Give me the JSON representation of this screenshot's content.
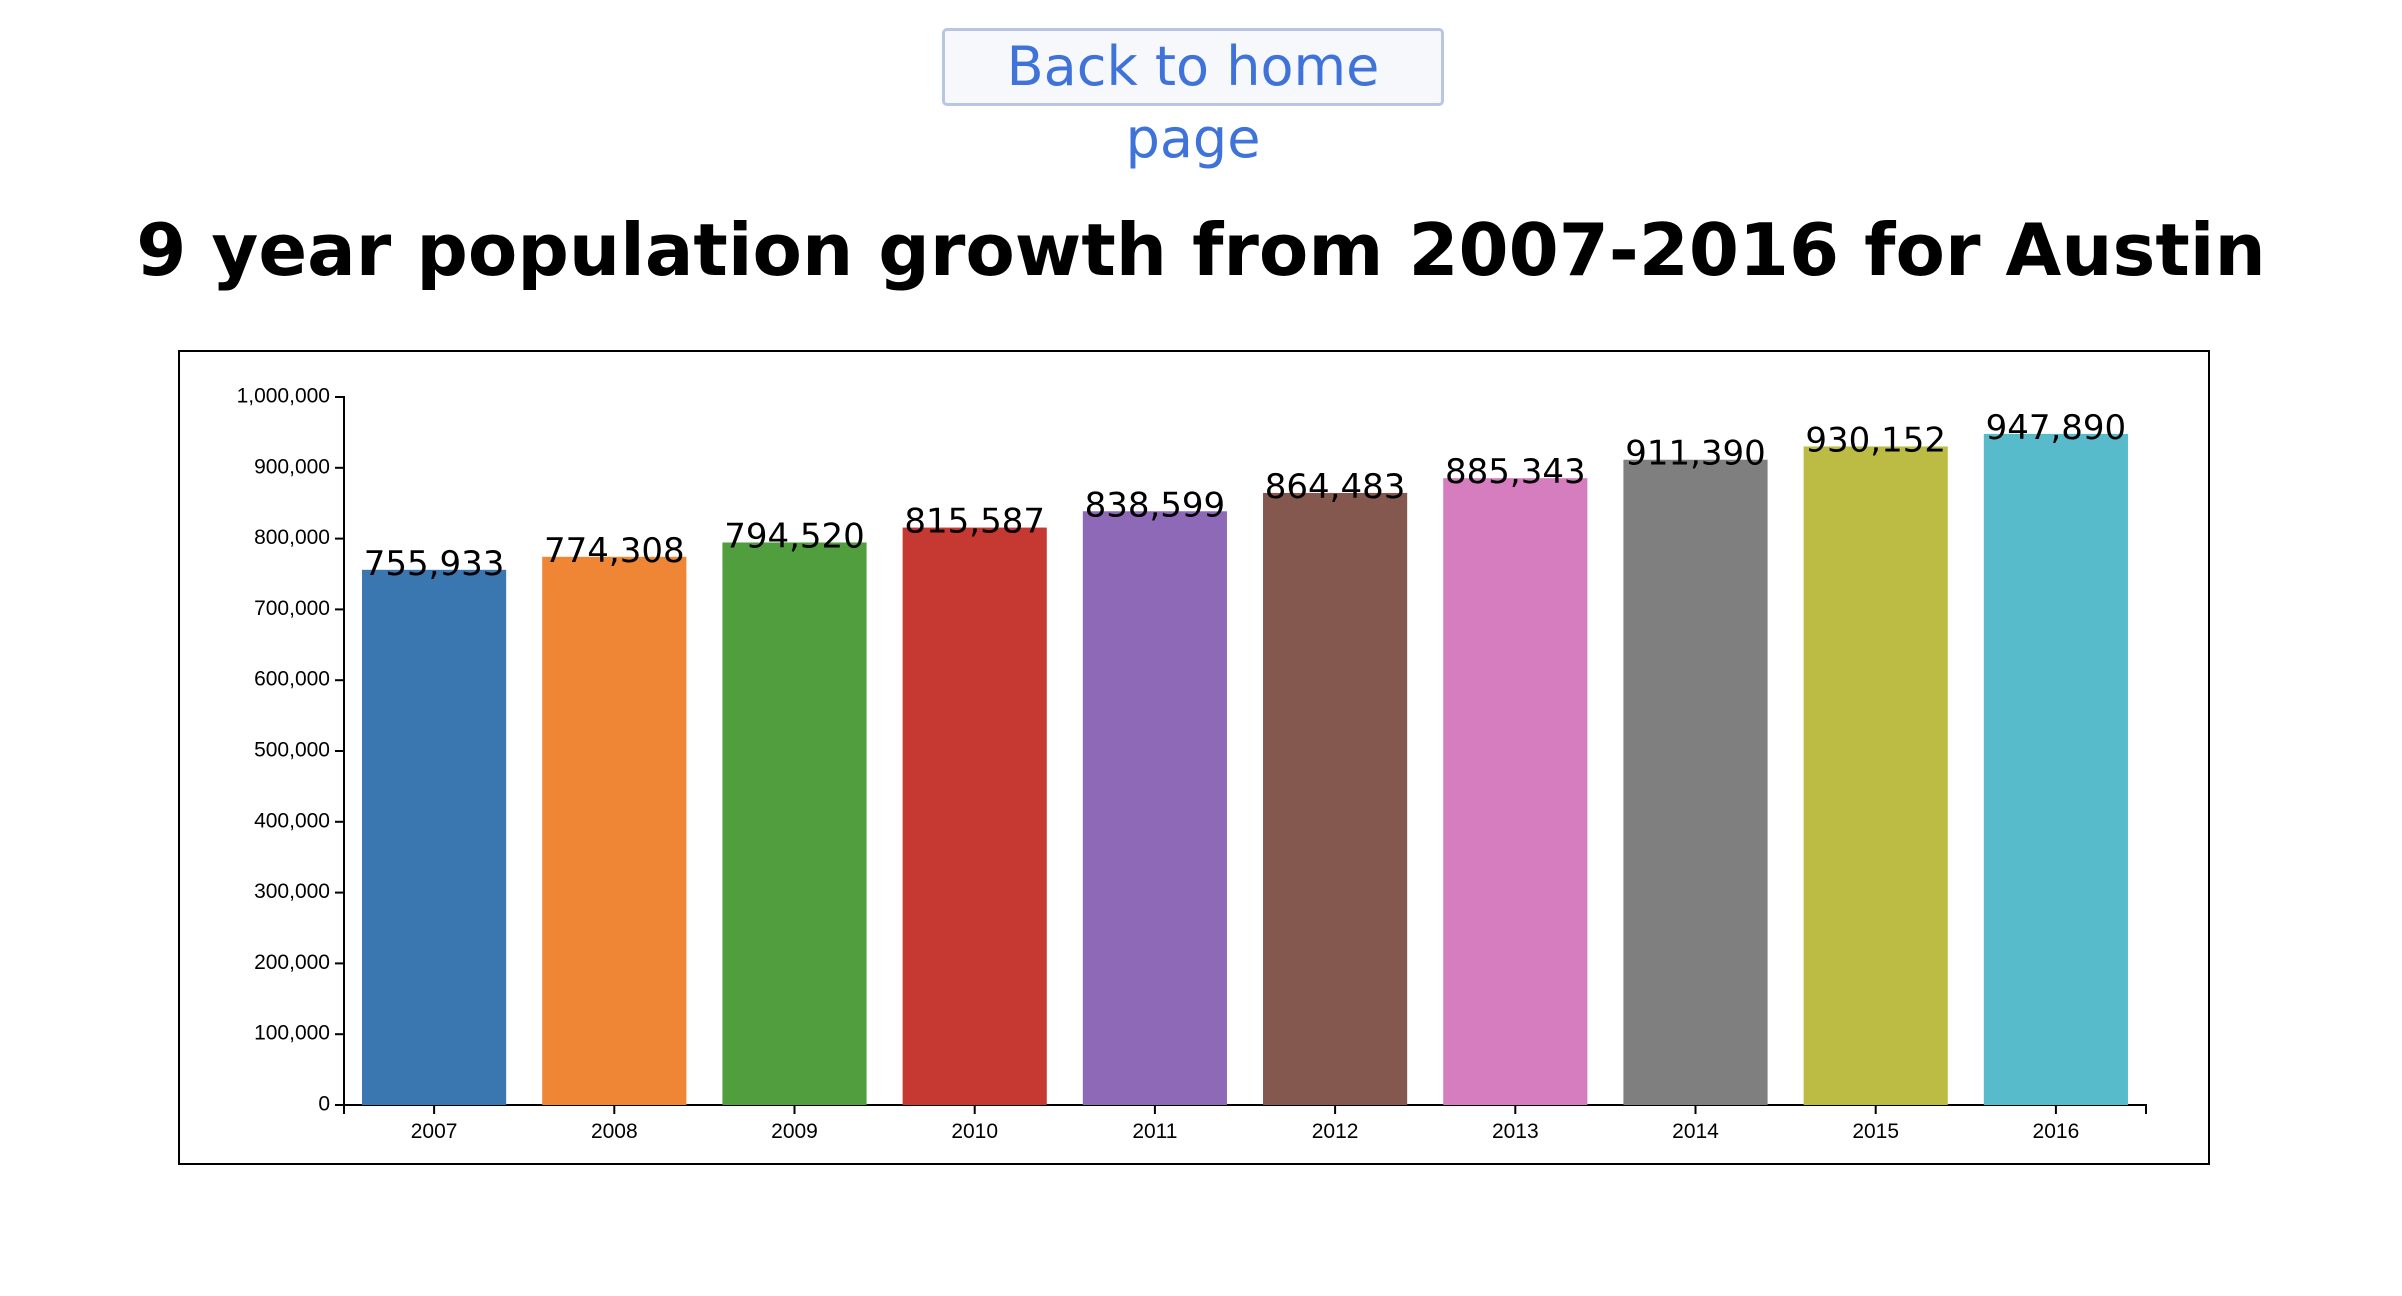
{
  "nav": {
    "back_label": "Back to home page"
  },
  "page": {
    "title": "9 year population growth from 2007-2016 for Austin"
  },
  "chart_data": {
    "type": "bar",
    "categories": [
      "2007",
      "2008",
      "2009",
      "2010",
      "2011",
      "2012",
      "2013",
      "2014",
      "2015",
      "2016"
    ],
    "values": [
      755933,
      774308,
      794520,
      815587,
      838599,
      864483,
      885343,
      911390,
      930152,
      947890
    ],
    "data_labels": [
      "755,933",
      "774,308",
      "794,520",
      "815,587",
      "838,599",
      "864,483",
      "885,343",
      "911,390",
      "930,152",
      "947,890"
    ],
    "colors": [
      "#3a76af",
      "#ef8636",
      "#519e3e",
      "#c53932",
      "#8d69b8",
      "#84584e",
      "#d57dbf",
      "#7f7f7f",
      "#bcbc45",
      "#58bbcc"
    ],
    "ylim": [
      0,
      1000000
    ],
    "yticks": [
      0,
      100000,
      200000,
      300000,
      400000,
      500000,
      600000,
      700000,
      800000,
      900000,
      1000000
    ],
    "ytick_labels": [
      "0",
      "100,000",
      "200,000",
      "300,000",
      "400,000",
      "500,000",
      "600,000",
      "700,000",
      "800,000",
      "900,000",
      "1,000,000"
    ],
    "xlabel": "",
    "ylabel": "",
    "grid": false,
    "legend": "none"
  }
}
